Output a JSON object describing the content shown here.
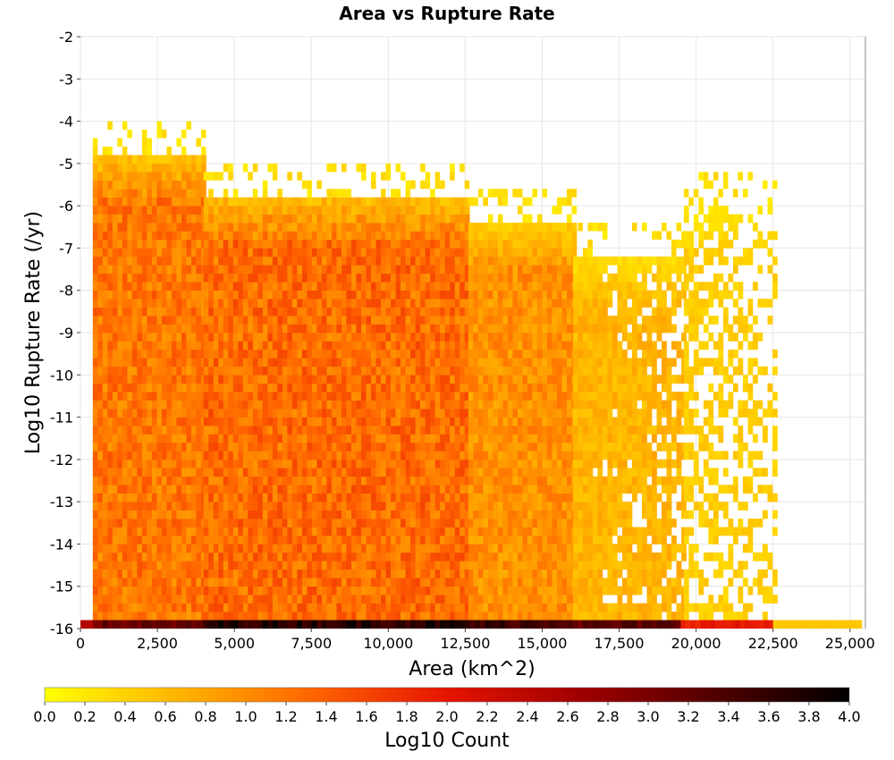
{
  "chart_data": {
    "type": "heatmap",
    "title": "Area vs Rupture Rate",
    "xlabel": "Area (km^2)",
    "ylabel": "Log10 Rupture Rate (/yr)",
    "xlim": [
      0,
      25500
    ],
    "ylim": [
      -16,
      -2
    ],
    "x_ticks": [
      0,
      2500,
      5000,
      7500,
      10000,
      12500,
      15000,
      17500,
      20000,
      22500,
      25000
    ],
    "x_tick_labels": [
      "0",
      "2,500",
      "5,000",
      "7,500",
      "10,000",
      "12,500",
      "15,000",
      "17,500",
      "20,000",
      "22,500",
      "25,000"
    ],
    "y_ticks": [
      -2,
      -3,
      -4,
      -5,
      -6,
      -7,
      -8,
      -9,
      -10,
      -11,
      -12,
      -13,
      -14,
      -15,
      -16
    ],
    "y_tick_labels": [
      "-2",
      "-3",
      "-4",
      "-5",
      "-6",
      "-7",
      "-8",
      "-9",
      "-10",
      "-11",
      "-12",
      "-13",
      "-14",
      "-15",
      "-16"
    ],
    "grid": true,
    "colorbar": {
      "label": "Log10 Count",
      "range": [
        0.0,
        4.0
      ],
      "tick_labels": [
        "0.0",
        "0.2",
        "0.4",
        "0.6",
        "0.8",
        "1.0",
        "1.2",
        "1.4",
        "1.6",
        "1.8",
        "2.0",
        "2.2",
        "2.4",
        "2.6",
        "2.8",
        "3.0",
        "3.2",
        "3.4",
        "3.6",
        "3.8",
        "4.0"
      ],
      "colors": [
        "#ffff00",
        "#ffb400",
        "#ff6400",
        "#e61400",
        "#a00000",
        "#500000",
        "#000000"
      ]
    },
    "bin_size": {
      "x": 160,
      "y": 0.2
    },
    "region_max_log10_count": [
      {
        "x_range": [
          400,
          4000
        ],
        "y_range": [
          -16,
          -4.8
        ],
        "value": 1.35
      },
      {
        "x_range": [
          4000,
          12600
        ],
        "y_range": [
          -16,
          -5.8
        ],
        "value": 1.45
      },
      {
        "x_range": [
          12600,
          16000
        ],
        "y_range": [
          -16,
          -6.4
        ],
        "value": 1.1
      },
      {
        "x_range": [
          16000,
          19600
        ],
        "y_range": [
          -16,
          -7.2
        ],
        "value": 0.75
      },
      {
        "x_range": [
          19600,
          22500
        ],
        "y_range": [
          -16,
          -6.0
        ],
        "value": 0.5
      }
    ],
    "bottom_row": [
      {
        "x_range": [
          0,
          400
        ],
        "value": 2.6
      },
      {
        "x_range": [
          400,
          4000
        ],
        "value": 3.2
      },
      {
        "x_range": [
          4000,
          12500
        ],
        "value": 3.8
      },
      {
        "x_range": [
          12500,
          16000
        ],
        "value": 3.6
      },
      {
        "x_range": [
          16000,
          19500
        ],
        "value": 3.3
      },
      {
        "x_range": [
          19500,
          22500
        ],
        "value": 2.0
      },
      {
        "x_range": [
          22500,
          25300
        ],
        "value": 0.5
      }
    ]
  }
}
